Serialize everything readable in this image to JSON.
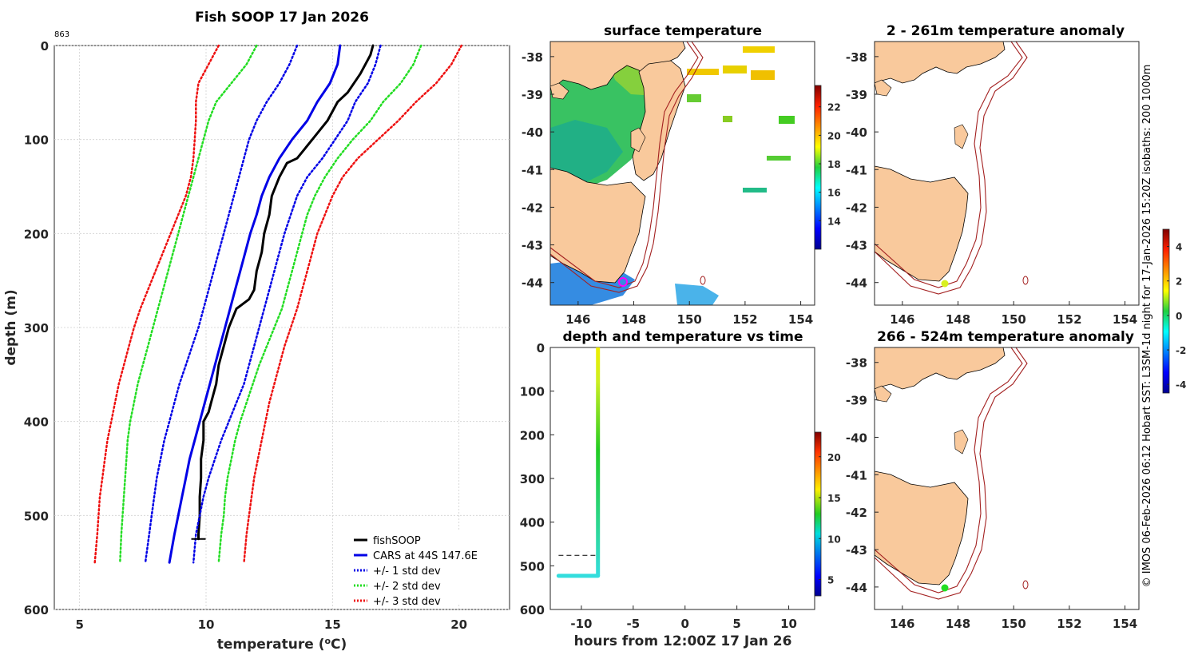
{
  "credit": "© IMOS 06-Feb-2026 06:12 Hobart SST: L3SM-1d night for 17-Jan-2026 15:20Z isobaths: 200  1000m",
  "colors": {
    "fishsoop": "#000000",
    "cars": "#0000e6",
    "std1": "#0000e6",
    "std2": "#22dd22",
    "std3": "#ee1111",
    "land": "#f9c99c",
    "isobath": "#a32020",
    "cool_water": "#1e8fdc",
    "mid_water": "#2ebf5a"
  },
  "chart_data": [
    {
      "id": "profile",
      "type": "line",
      "title": "Fish SOOP 17 Jan 2026",
      "corner_label": "863",
      "xlabel": "temperature (°C)",
      "ylabel": "depth (m)",
      "xlim": [
        4,
        22
      ],
      "ylim": [
        600,
        0
      ],
      "xticks": [
        5,
        10,
        15,
        20
      ],
      "yticks": [
        0,
        100,
        200,
        300,
        400,
        500,
        600
      ],
      "grid": true,
      "legend_position": "bottom-right",
      "depth": [
        0,
        20,
        40,
        60,
        80,
        100,
        120,
        140,
        160,
        180,
        200,
        220,
        240,
        260,
        280,
        300,
        320,
        340,
        360,
        380,
        400,
        420,
        440,
        460,
        480,
        500,
        520,
        550
      ],
      "series": [
        {
          "name": "fishSOOP",
          "style": "solid",
          "width": 3,
          "color_key": "fishsoop",
          "depth": [
            0,
            10,
            30,
            50,
            60,
            80,
            100,
            120,
            125,
            140,
            160,
            180,
            200,
            220,
            240,
            260,
            270,
            280,
            300,
            320,
            340,
            360,
            380,
            390,
            400,
            420,
            440,
            460,
            480,
            500,
            520,
            525
          ],
          "values": [
            16.6,
            16.5,
            16.1,
            15.6,
            15.2,
            14.8,
            14.2,
            13.6,
            13.2,
            12.9,
            12.6,
            12.5,
            12.3,
            12.2,
            12.0,
            11.9,
            11.7,
            11.2,
            10.9,
            10.7,
            10.5,
            10.4,
            10.2,
            10.1,
            9.9,
            9.9,
            9.8,
            9.8,
            9.75,
            9.75,
            9.7,
            9.7
          ]
        },
        {
          "name": "CARS at 44S 147.6E",
          "style": "solid",
          "width": 3,
          "color_key": "cars",
          "values": [
            15.3,
            15.2,
            14.9,
            14.4,
            14.0,
            13.4,
            12.9,
            12.5,
            12.2,
            12.0,
            11.75,
            11.55,
            11.35,
            11.15,
            10.95,
            10.75,
            10.55,
            10.35,
            10.15,
            9.95,
            9.75,
            9.55,
            9.35,
            9.2,
            9.05,
            8.9,
            8.75,
            8.55
          ]
        },
        {
          "name": "+/- 1 std dev",
          "style": "dotted",
          "width": 2.5,
          "color_key": "std1",
          "values": [
            13.6,
            13.3,
            12.9,
            12.4,
            12.0,
            11.7,
            11.5,
            11.3,
            11.1,
            10.9,
            10.7,
            10.5,
            10.3,
            10.1,
            9.9,
            9.7,
            9.45,
            9.2,
            8.95,
            8.75,
            8.55,
            8.35,
            8.2,
            8.05,
            7.95,
            7.85,
            7.75,
            7.6
          ]
        },
        {
          "name": "__std1_hi",
          "style": "dotted",
          "width": 2.5,
          "color_key": "std1",
          "legend": false,
          "values": [
            16.9,
            16.7,
            16.4,
            15.9,
            15.6,
            15.1,
            14.6,
            14.0,
            13.6,
            13.35,
            13.1,
            12.9,
            12.7,
            12.5,
            12.3,
            12.1,
            11.9,
            11.7,
            11.5,
            11.2,
            10.9,
            10.6,
            10.35,
            10.1,
            9.9,
            9.75,
            9.6,
            9.5
          ]
        },
        {
          "name": "+/- 2 std dev",
          "style": "dotted",
          "width": 2.5,
          "color_key": "std2",
          "values": [
            12.0,
            11.6,
            11.0,
            10.4,
            10.1,
            9.9,
            9.7,
            9.5,
            9.3,
            9.1,
            8.9,
            8.7,
            8.5,
            8.3,
            8.1,
            7.9,
            7.7,
            7.5,
            7.3,
            7.15,
            7.0,
            6.9,
            6.85,
            6.8,
            6.75,
            6.7,
            6.65,
            6.6
          ]
        },
        {
          "name": "__std2_hi",
          "style": "dotted",
          "width": 2.5,
          "color_key": "std2",
          "legend": false,
          "values": [
            18.5,
            18.2,
            17.7,
            17.0,
            16.5,
            15.8,
            15.2,
            14.7,
            14.3,
            14.0,
            13.8,
            13.6,
            13.4,
            13.2,
            13.0,
            12.7,
            12.4,
            12.1,
            11.85,
            11.6,
            11.35,
            11.15,
            11.0,
            10.85,
            10.75,
            10.7,
            10.6,
            10.5
          ]
        },
        {
          "name": "+/- 3 std dev",
          "style": "dotted",
          "width": 2.5,
          "color_key": "std3",
          "values": [
            10.5,
            10.1,
            9.7,
            9.6,
            9.6,
            9.55,
            9.5,
            9.4,
            9.2,
            8.9,
            8.6,
            8.3,
            8.0,
            7.7,
            7.4,
            7.15,
            6.95,
            6.75,
            6.55,
            6.4,
            6.25,
            6.1,
            6.0,
            5.9,
            5.8,
            5.75,
            5.7,
            5.6
          ]
        },
        {
          "name": "__std3_hi",
          "style": "dotted",
          "width": 2.5,
          "color_key": "std3",
          "legend": false,
          "values": [
            20.1,
            19.7,
            19.1,
            18.3,
            17.6,
            16.8,
            16.0,
            15.4,
            15.0,
            14.7,
            14.4,
            14.2,
            14.0,
            13.8,
            13.6,
            13.35,
            13.1,
            12.9,
            12.7,
            12.5,
            12.35,
            12.2,
            12.05,
            11.9,
            11.8,
            11.7,
            11.6,
            11.5
          ]
        }
      ]
    },
    {
      "id": "sst",
      "type": "heatmap",
      "title": "surface temperature",
      "xlim": [
        145,
        154.5
      ],
      "ylim": [
        -44.6,
        -37.6
      ],
      "xticks": [
        146,
        148,
        150,
        152,
        154
      ],
      "yticks": [
        -38,
        -39,
        -40,
        -41,
        -42,
        -43,
        -44
      ],
      "colorbar": {
        "range": [
          12,
          23.5
        ],
        "ticks": [
          14,
          16,
          18,
          20,
          22
        ]
      },
      "marker": {
        "lon": 147.6,
        "lat": -44,
        "color": "#ff00ff"
      }
    },
    {
      "id": "time",
      "type": "scatter",
      "title": "depth and temperature vs time",
      "xlabel": "hours from 12:00Z 17 Jan 26",
      "xlim": [
        -13,
        12.5
      ],
      "ylim": [
        600,
        0
      ],
      "xticks": [
        -10,
        -5,
        0,
        5,
        10
      ],
      "yticks": [
        0,
        100,
        200,
        300,
        400,
        500,
        600
      ],
      "reference_depth": 476,
      "colorbar": {
        "range": [
          3,
          23
        ],
        "ticks": [
          5,
          10,
          15,
          20
        ]
      },
      "track": [
        {
          "hours": -12.2,
          "depth": 523,
          "temp": 9.7
        },
        {
          "hours": -8.4,
          "depth": 523,
          "temp": 9.7
        },
        {
          "hours": -8.4,
          "depth": 0,
          "temp": 16.6
        }
      ]
    },
    {
      "id": "anom1",
      "type": "heatmap",
      "title": "2 - 261m temperature anomaly",
      "xlim": [
        145,
        154.5
      ],
      "ylim": [
        -44.6,
        -37.6
      ],
      "xticks": [
        146,
        148,
        150,
        152,
        154
      ],
      "yticks": [
        -38,
        -39,
        -40,
        -41,
        -42,
        -43,
        -44
      ],
      "colorbar": {
        "range": [
          -4.5,
          5
        ],
        "ticks": [
          -4,
          -2,
          0,
          2,
          4
        ]
      },
      "marker": {
        "lon": 147.5,
        "lat": -44,
        "anomaly": 1.8
      }
    },
    {
      "id": "anom2",
      "type": "heatmap",
      "title": "266 - 524m temperature anomaly",
      "xlim": [
        145,
        154.5
      ],
      "ylim": [
        -44.6,
        -37.6
      ],
      "xticks": [
        146,
        148,
        150,
        152,
        154
      ],
      "yticks": [
        -38,
        -39,
        -40,
        -41,
        -42,
        -43,
        -44
      ],
      "marker": {
        "lon": 147.5,
        "lat": -44,
        "anomaly": 0.4
      }
    }
  ]
}
